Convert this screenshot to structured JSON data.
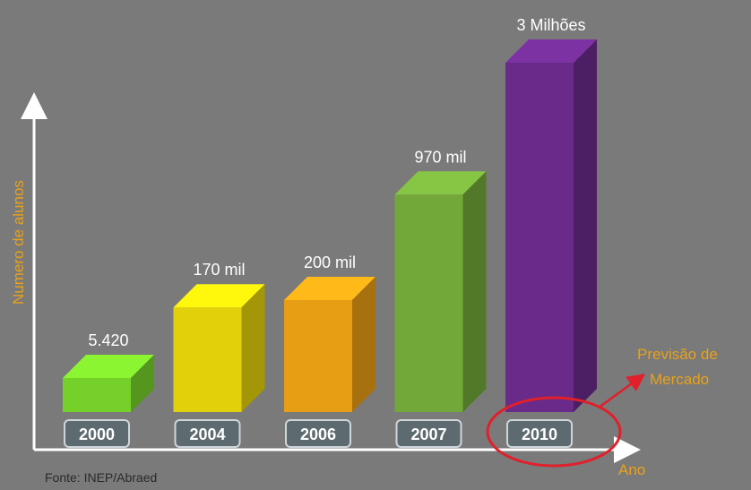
{
  "chart_data": {
    "type": "bar",
    "categories": [
      "2000",
      "2004",
      "2006",
      "2007",
      "2010"
    ],
    "values": [
      5420,
      170000,
      200000,
      970000,
      3000000
    ],
    "value_labels": [
      "5.420",
      "170 mil",
      "200 mil",
      "970 mil",
      "3 Milhões"
    ],
    "ylabel": "Numero de alunos",
    "xlabel": "Ano",
    "colors": [
      "#76d02a",
      "#e2d10a",
      "#e79d14",
      "#72a83a",
      "#6a2a8a"
    ],
    "annotation": {
      "text_line1": "Previsão de",
      "text_line2": "Mercado",
      "color": "#e8a21a",
      "circle_color": "#e0202a"
    },
    "source": "Fonte: INEP/Abraed",
    "y_axis_scale": "non-linear (illustrative)",
    "grid": false
  }
}
